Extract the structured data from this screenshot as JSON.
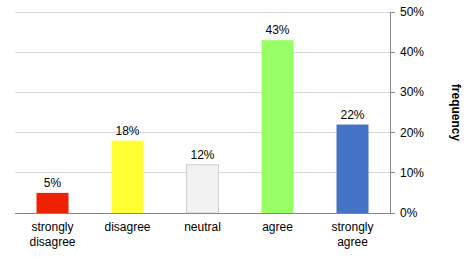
{
  "chart_data": {
    "type": "bar",
    "ylabel": "frequency",
    "categories": [
      "strongly disagree",
      "disagree",
      "neutral",
      "agree",
      "strongly agree"
    ],
    "values": [
      5,
      18,
      12,
      43,
      22
    ],
    "value_labels": [
      "5%",
      "18%",
      "12%",
      "43%",
      "22%"
    ],
    "colors": [
      "#ee2200",
      "#ffff33",
      "#f2f2f2",
      "#99ff66",
      "#4472c4"
    ],
    "ylim": [
      0,
      50
    ],
    "yticks": [
      {
        "value": 0,
        "label": "0%"
      },
      {
        "value": 10,
        "label": "10%"
      },
      {
        "value": 20,
        "label": "20%"
      },
      {
        "value": 30,
        "label": "30%"
      },
      {
        "value": 40,
        "label": "40%"
      },
      {
        "value": 50,
        "label": "50%"
      }
    ],
    "grid": true,
    "data_labels": true
  }
}
